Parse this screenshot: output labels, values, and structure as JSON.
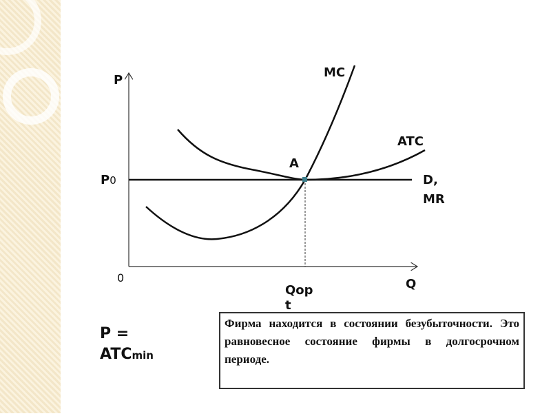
{
  "diagram": {
    "y_axis_label": "P",
    "x_axis_label": "Q",
    "origin_label": "0",
    "mc_label": "MC",
    "atc_label": "ATC",
    "point_label": "A",
    "price_label": "P",
    "price_sub": "0",
    "demand_label": "D,",
    "demand_label2": "MR",
    "q_label": "Qopt"
  },
  "formula": {
    "lhs": "P =",
    "rhs": "ATC",
    "sub": "min"
  },
  "note": "Фирма находится в состоянии безубыточности. Это равновесное состояние фирмы в долгосрочном периоде."
}
